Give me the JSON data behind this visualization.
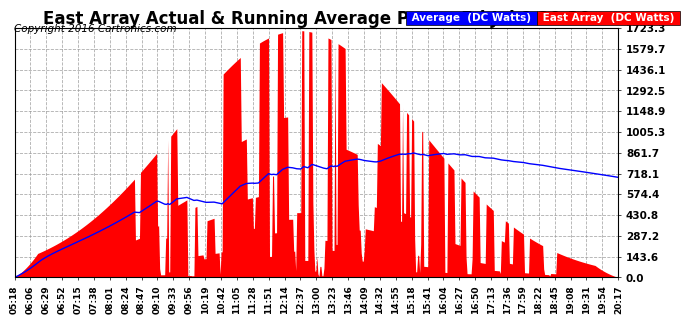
{
  "title": "East Array Actual & Running Average Power Fri Jul 8 20:30",
  "copyright": "Copyright 2016 Cartronics.com",
  "legend_labels": [
    "Average  (DC Watts)",
    "East Array  (DC Watts)"
  ],
  "legend_colors": [
    "#0000ff",
    "#ff0000"
  ],
  "y_max": 1723.3,
  "y_min": 0.0,
  "y_ticks": [
    0.0,
    143.6,
    287.2,
    430.8,
    574.4,
    718.1,
    861.7,
    1005.3,
    1148.9,
    1292.5,
    1436.1,
    1579.7,
    1723.3
  ],
  "x_labels": [
    "05:18",
    "06:06",
    "06:29",
    "06:52",
    "07:15",
    "07:38",
    "08:01",
    "08:24",
    "08:47",
    "09:10",
    "09:33",
    "09:56",
    "10:19",
    "10:42",
    "11:05",
    "11:28",
    "11:51",
    "12:14",
    "12:37",
    "13:00",
    "13:23",
    "13:46",
    "14:09",
    "14:32",
    "14:55",
    "15:18",
    "15:41",
    "16:04",
    "16:27",
    "16:50",
    "17:13",
    "17:36",
    "17:59",
    "18:22",
    "18:45",
    "19:08",
    "19:31",
    "19:54",
    "20:17"
  ],
  "background_color": "#ffffff",
  "plot_background": "#ffffff",
  "grid_color": "#999999",
  "area_color": "#ff0000",
  "avg_color": "#0000ff",
  "title_fontsize": 12,
  "copyright_fontsize": 7.5
}
